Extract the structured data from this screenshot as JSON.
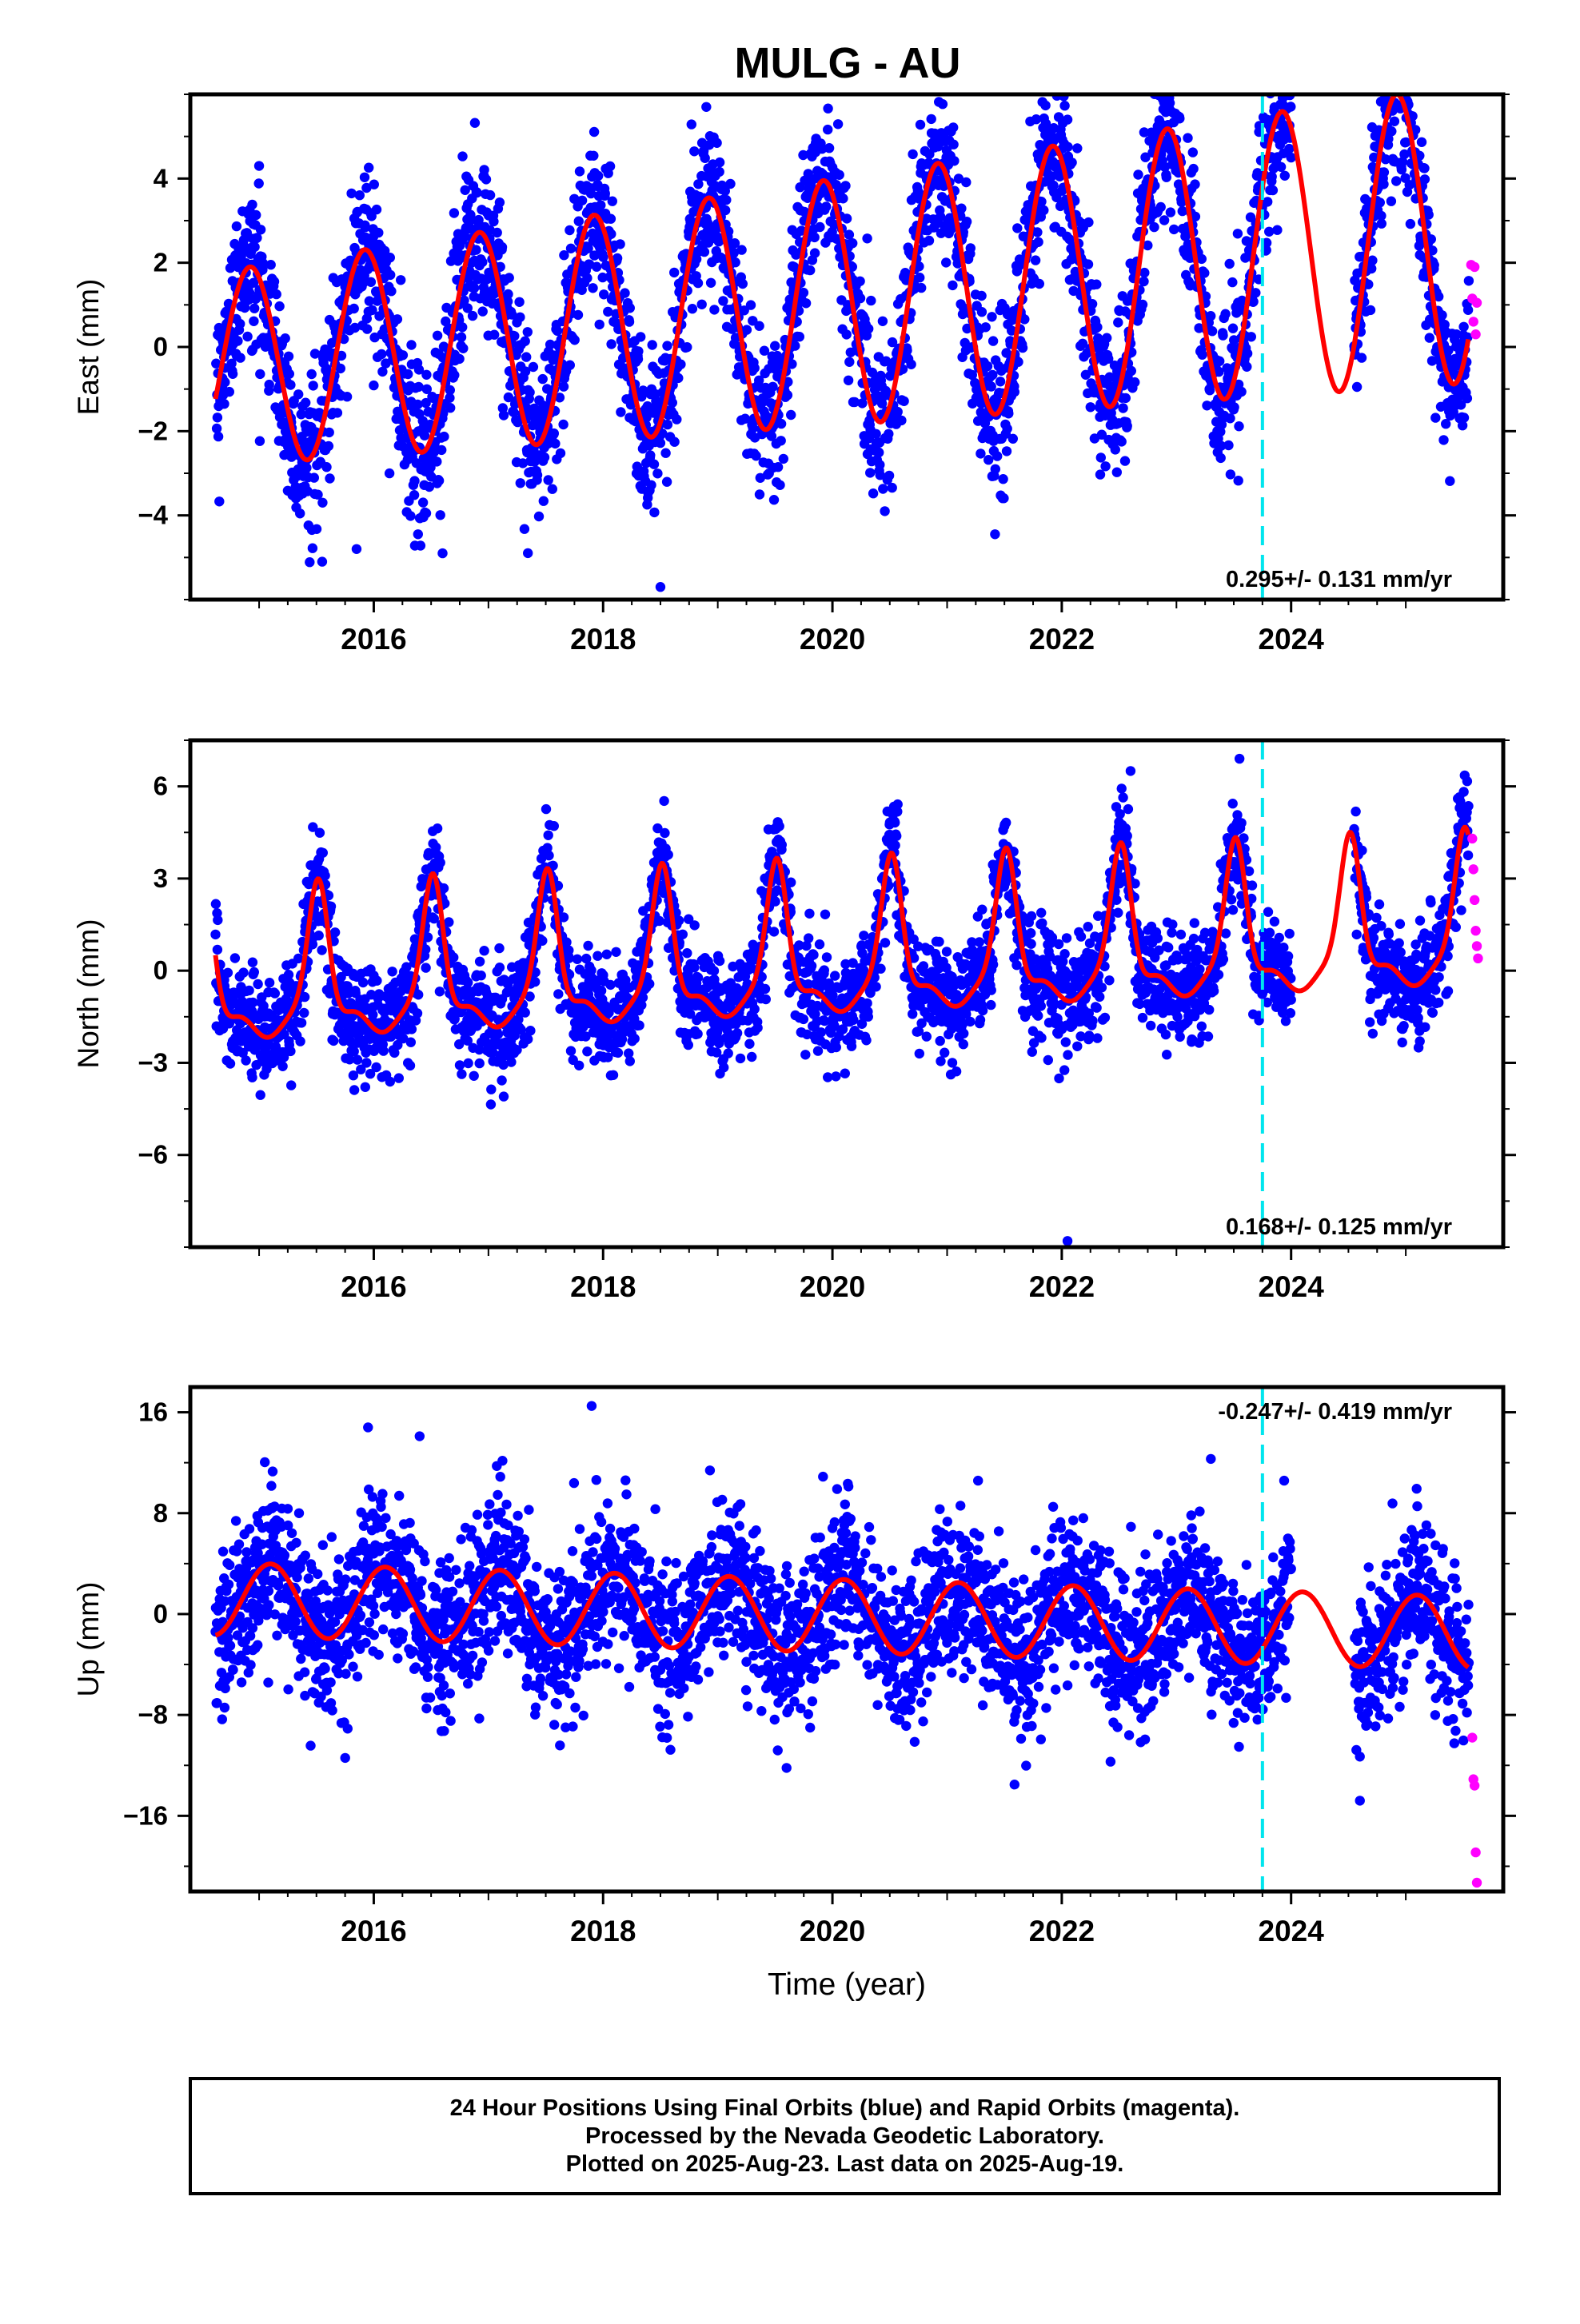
{
  "title": "MULG - AU",
  "colors": {
    "final_orbits": "#0000ff",
    "rapid_orbits": "#ff00ff",
    "model_fit": "#ff0000",
    "equipment_change": "#00e5ee",
    "frame": "#000000"
  },
  "footer": {
    "line1": "24 Hour Positions Using Final Orbits (blue) and Rapid Orbits (magenta).",
    "line2": "Processed by the Nevada Geodetic Laboratory.",
    "line3": "Plotted on 2025-Aug-23. Last data on 2025-Aug-19."
  },
  "chart_data": [
    {
      "type": "scatter",
      "component": "east",
      "ylabel": "East (mm)",
      "xlabel": "",
      "xlim": [
        2014.4,
        2025.85
      ],
      "ylim": [
        -6.0,
        6.0
      ],
      "xticks": [
        2016,
        2018,
        2020,
        2022,
        2024
      ],
      "xtick_labels": [
        "2016",
        "2018",
        "2020",
        "2022",
        "2024"
      ],
      "yticks": [
        -4,
        -2,
        0,
        2,
        4
      ],
      "ytick_labels": [
        "−4",
        "−2",
        "0",
        "2",
        "4"
      ],
      "rate_label": "0.295+/- 0.131 mm/yr",
      "rate_label_position": "bottom-right",
      "equipment_change_year": 2023.75,
      "gap": [
        2024.0,
        2024.55
      ],
      "model": {
        "offset": -0.53,
        "rate": 0.295,
        "annual_amp": 2.3,
        "annual_peak_month_phase": 0.92,
        "amp_growth_per_year": 0.05
      },
      "scatter_sd": 0.95,
      "rapid_orbit_points": [
        {
          "x": 2025.57,
          "y": 1.95
        },
        {
          "x": 2025.58,
          "y": 1.15
        },
        {
          "x": 2025.59,
          "y": 0.6
        },
        {
          "x": 2025.6,
          "y": 1.9
        },
        {
          "x": 2025.61,
          "y": 0.3
        },
        {
          "x": 2025.62,
          "y": 1.05
        }
      ],
      "outliers": [
        {
          "x": 2015.0,
          "y": 4.3
        },
        {
          "x": 2015.55,
          "y": -5.1
        },
        {
          "x": 2015.85,
          "y": -4.8
        },
        {
          "x": 2016.6,
          "y": -4.9
        },
        {
          "x": 2018.5,
          "y": -5.7
        },
        {
          "x": 2018.9,
          "y": 5.7
        },
        {
          "x": 2022.95,
          "y": 5.6
        },
        {
          "x": 2022.05,
          "y": 5.4
        }
      ]
    },
    {
      "type": "scatter",
      "component": "north",
      "ylabel": "North (mm)",
      "xlabel": "",
      "xlim": [
        2014.4,
        2025.85
      ],
      "ylim": [
        -9.0,
        7.5
      ],
      "xticks": [
        2016,
        2018,
        2020,
        2022,
        2024
      ],
      "xtick_labels": [
        "2016",
        "2018",
        "2020",
        "2022",
        "2024"
      ],
      "yticks": [
        -6,
        -3,
        0,
        3,
        6
      ],
      "ytick_labels": [
        "−6",
        "−3",
        "0",
        "3",
        "6"
      ],
      "rate_label": "0.168+/- 0.125 mm/yr",
      "rate_label_position": "bottom-right",
      "equipment_change_year": 2023.75,
      "gap": [
        2024.0,
        2024.55
      ],
      "model": {
        "base": -1.9,
        "rate": 0.168,
        "peak_amp": 5.0,
        "peak_phase": 0.52,
        "peak_width": 0.09
      },
      "scatter_sd": 0.85,
      "rapid_orbit_points": [
        {
          "x": 2025.58,
          "y": 4.3
        },
        {
          "x": 2025.59,
          "y": 3.3
        },
        {
          "x": 2025.6,
          "y": 2.3
        },
        {
          "x": 2025.61,
          "y": 1.3
        },
        {
          "x": 2025.62,
          "y": 0.8
        },
        {
          "x": 2025.63,
          "y": 0.4
        }
      ],
      "outliers": [
        {
          "x": 2022.05,
          "y": -8.8
        },
        {
          "x": 2023.55,
          "y": 6.9
        },
        {
          "x": 2022.6,
          "y": 6.5
        }
      ]
    },
    {
      "type": "scatter",
      "component": "up",
      "ylabel": "Up (mm)",
      "xlabel": "Time (year)",
      "xlim": [
        2014.4,
        2025.85
      ],
      "ylim": [
        -22.0,
        18.0
      ],
      "xticks": [
        2016,
        2018,
        2020,
        2022,
        2024
      ],
      "xtick_labels": [
        "2016",
        "2018",
        "2020",
        "2022",
        "2024"
      ],
      "yticks": [
        -16,
        -8,
        0,
        8,
        16
      ],
      "ytick_labels": [
        "−16",
        "−8",
        "0",
        "8",
        "16"
      ],
      "rate_label": "-0.247+/- 0.419 mm/yr",
      "rate_label_position": "top-right",
      "equipment_change_year": 2023.75,
      "gap": [
        2024.0,
        2024.55
      ],
      "model": {
        "offset": 1.2,
        "rate": -0.247,
        "annual_amp": 2.9,
        "annual_peak_month_phase": 0.1
      },
      "scatter_sd": 3.1,
      "rapid_orbit_points": [
        {
          "x": 2025.58,
          "y": -9.8
        },
        {
          "x": 2025.59,
          "y": -13.1
        },
        {
          "x": 2025.6,
          "y": -13.6
        },
        {
          "x": 2025.61,
          "y": -18.9
        },
        {
          "x": 2025.62,
          "y": -21.3
        }
      ],
      "outliers": [
        {
          "x": 2017.9,
          "y": 16.5
        },
        {
          "x": 2015.95,
          "y": 14.8
        },
        {
          "x": 2016.4,
          "y": 14.1
        },
        {
          "x": 2019.6,
          "y": -12.2
        },
        {
          "x": 2024.6,
          "y": -14.8
        },
        {
          "x": 2023.3,
          "y": 12.3
        }
      ]
    }
  ]
}
